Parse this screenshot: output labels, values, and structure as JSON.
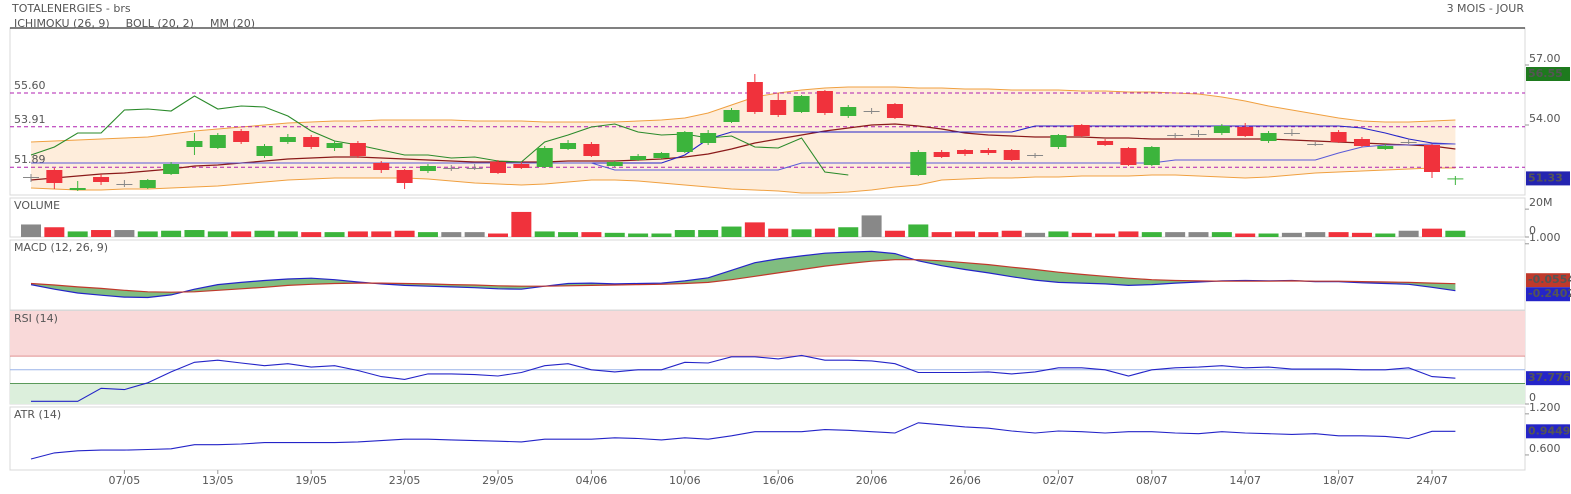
{
  "header": {
    "title": "TOTALENERGIES - brs",
    "period": "3 MOIS - JOUR"
  },
  "chart_data": [
    {
      "type": "candlestick",
      "categories": [
        null,
        null,
        null,
        null,
        "07/05",
        null,
        null,
        null,
        "13/05",
        null,
        null,
        null,
        "19/05",
        null,
        null,
        null,
        "23/05",
        null,
        null,
        null,
        "29/05",
        null,
        null,
        null,
        "04/06",
        null,
        null,
        null,
        "10/06",
        null,
        null,
        null,
        "16/06",
        null,
        null,
        null,
        "20/06",
        null,
        null,
        null,
        "26/06",
        null,
        null,
        null,
        "02/07",
        null,
        null,
        null,
        "08/07",
        null,
        null,
        null,
        "14/07",
        null,
        null,
        null,
        "18/07",
        null,
        null,
        null,
        "24/07",
        null
      ],
      "open": [
        51.4,
        51.75,
        50.75,
        51.4,
        51.05,
        50.85,
        51.55,
        52.9,
        52.85,
        53.7,
        52.45,
        53.15,
        53.4,
        52.85,
        53.1,
        52.1,
        51.75,
        51.7,
        51.85,
        51.85,
        52.15,
        52.05,
        51.9,
        52.8,
        53.05,
        51.95,
        52.25,
        52.35,
        52.65,
        53.1,
        54.15,
        56.15,
        55.25,
        54.65,
        55.7,
        54.45,
        54.7,
        55.05,
        51.5,
        52.65,
        52.75,
        52.75,
        52.75,
        52.5,
        52.9,
        54.0,
        53.2,
        52.85,
        52.0,
        53.5,
        53.55,
        53.6,
        53.9,
        53.2,
        53.6,
        53.05,
        53.65,
        53.3,
        52.8,
        53.15,
        53.0,
        51.3
      ],
      "close": [
        51.4,
        51.1,
        50.85,
        51.15,
        51.05,
        51.25,
        52.05,
        53.2,
        53.5,
        53.15,
        52.95,
        53.4,
        52.9,
        53.1,
        52.45,
        51.75,
        51.1,
        51.95,
        51.85,
        51.85,
        51.6,
        51.85,
        52.85,
        53.1,
        52.45,
        52.15,
        52.45,
        52.6,
        53.65,
        53.6,
        54.75,
        54.65,
        54.5,
        55.45,
        54.6,
        54.9,
        54.7,
        54.35,
        52.65,
        52.4,
        52.55,
        52.6,
        52.25,
        52.5,
        53.5,
        53.45,
        53.0,
        52.0,
        52.9,
        53.5,
        53.55,
        53.95,
        53.45,
        53.6,
        53.6,
        53.05,
        53.15,
        52.95,
        52.95,
        53.15,
        51.65,
        51.33
      ],
      "high": [
        51.55,
        51.85,
        51.2,
        51.55,
        51.25,
        51.3,
        52.15,
        53.6,
        53.6,
        53.8,
        53.05,
        53.55,
        53.5,
        53.2,
        53.2,
        52.2,
        51.8,
        52.05,
        52.0,
        52.05,
        52.25,
        52.15,
        52.95,
        53.25,
        53.15,
        52.2,
        52.55,
        52.65,
        53.7,
        53.75,
        54.85,
        56.55,
        55.6,
        55.5,
        55.75,
        55.0,
        54.85,
        55.1,
        52.75,
        52.75,
        52.8,
        52.85,
        52.8,
        52.6,
        53.55,
        54.05,
        53.3,
        52.9,
        52.95,
        53.6,
        53.75,
        54.05,
        54.1,
        53.7,
        53.8,
        53.15,
        53.75,
        53.4,
        53.05,
        53.3,
        53.05,
        51.45
      ],
      "low": [
        51.15,
        50.8,
        50.7,
        51.0,
        50.9,
        50.8,
        51.5,
        52.5,
        52.8,
        53.05,
        52.35,
        53.05,
        52.8,
        52.7,
        52.35,
        51.6,
        50.8,
        51.6,
        51.7,
        51.75,
        51.55,
        51.8,
        51.85,
        52.75,
        52.4,
        51.9,
        52.2,
        52.3,
        52.6,
        53.0,
        54.1,
        54.55,
        54.4,
        54.6,
        54.5,
        54.35,
        54.55,
        54.3,
        51.45,
        52.35,
        52.45,
        52.5,
        52.2,
        52.35,
        52.8,
        53.4,
        52.95,
        51.95,
        51.95,
        53.35,
        53.4,
        53.5,
        53.4,
        53.1,
        53.45,
        52.95,
        53.1,
        52.9,
        52.75,
        53.05,
        51.35,
        51.0
      ],
      "up_color": "#3cb43c",
      "down_color": "#f0323c",
      "flat_color": "#888888",
      "ylim": [
        50.5,
        58.85
      ],
      "yticks": [
        {
          "value": 57,
          "label": "57.00"
        },
        {
          "value": 54,
          "label": "54.00"
        }
      ],
      "levels": [
        {
          "value": 55.6,
          "label": "55.60"
        },
        {
          "value": 53.91,
          "label": "53.91"
        },
        {
          "value": 51.89,
          "label": "51.89"
        }
      ],
      "level_color": "#b020b0",
      "high_box_color": "#1e7a1e",
      "last_box_color": "#2424b0",
      "indicators": [
        {
          "name": "ICHIMOKU (26, 9)",
          "color": "#2a2aaa",
          "lines": [
            {
              "color": "#2424c8",
              "values": [
                52.1,
                52.1,
                52.1,
                52.1,
                52.1,
                52.1,
                52.1,
                52.1,
                52.1,
                52.1,
                52.1,
                52.1,
                52.1,
                52.1,
                52.1,
                52.1,
                52.1,
                52.1,
                52.1,
                52.1,
                52.1,
                52.1,
                52.1,
                52.1,
                52.1,
                52.1,
                52.1,
                52.1,
                52.5,
                53.3,
                53.65,
                53.65,
                53.65,
                53.65,
                53.65,
                53.65,
                53.65,
                53.65,
                53.65,
                53.65,
                53.65,
                53.65,
                53.65,
                53.95,
                53.95,
                53.95,
                53.95,
                53.95,
                53.95,
                53.95,
                53.95,
                53.95,
                53.95,
                53.95,
                53.95,
                53.95,
                53.95,
                53.85,
                53.6,
                53.3,
                53.1,
                53.05
              ]
            },
            {
              "color": "#5a5ad8",
              "values": [
                52.1,
                52.1,
                52.1,
                52.1,
                52.1,
                52.1,
                52.1,
                52.1,
                52.1,
                52.1,
                52.1,
                52.1,
                52.1,
                52.1,
                52.1,
                52.1,
                52.1,
                52.1,
                52.1,
                52.1,
                52.1,
                52.1,
                52.1,
                52.1,
                52.1,
                51.75,
                51.75,
                51.75,
                51.75,
                51.75,
                51.75,
                51.75,
                51.75,
                52.1,
                52.1,
                52.1,
                52.1,
                52.1,
                52.1,
                52.1,
                52.1,
                52.1,
                52.1,
                52.1,
                52.1,
                52.1,
                52.1,
                52.1,
                52.1,
                52.25,
                52.25,
                52.25,
                52.25,
                52.25,
                52.25,
                52.25,
                52.6,
                52.9,
                53.0,
                53.0,
                53.05,
                53.05
              ]
            },
            {
              "color": "#2a8a2a",
              "values": [
                52.5,
                52.9,
                53.6,
                53.6,
                54.75,
                54.8,
                54.7,
                55.45,
                54.8,
                54.95,
                54.9,
                54.45,
                53.7,
                53.2,
                53.0,
                52.75,
                52.5,
                52.5,
                52.35,
                52.4,
                52.2,
                52.15,
                53.15,
                53.5,
                53.9,
                54.05,
                53.65,
                53.5,
                53.55,
                53.35,
                53.45,
                52.9,
                52.85,
                53.35,
                51.65,
                51.5,
                null,
                null,
                null,
                null,
                null,
                null,
                null,
                null,
                null,
                null,
                null,
                null,
                null,
                null,
                null,
                null,
                null,
                null,
                null,
                null,
                null,
                null,
                null,
                null,
                null,
                null
              ]
            }
          ]
        },
        {
          "name": "BOLL (20, 2)",
          "color": "#f0a040",
          "fill": "#fde6cc",
          "upper": [
            53.15,
            53.2,
            53.25,
            53.3,
            53.35,
            53.4,
            53.55,
            53.7,
            53.8,
            53.9,
            54.0,
            54.1,
            54.15,
            54.2,
            54.2,
            54.25,
            54.25,
            54.25,
            54.25,
            54.2,
            54.2,
            54.2,
            54.15,
            54.15,
            54.15,
            54.15,
            54.2,
            54.25,
            54.35,
            54.6,
            55.0,
            55.4,
            55.6,
            55.75,
            55.85,
            55.9,
            55.9,
            55.9,
            55.85,
            55.85,
            55.8,
            55.8,
            55.75,
            55.75,
            55.75,
            55.7,
            55.7,
            55.65,
            55.65,
            55.6,
            55.55,
            55.4,
            55.2,
            54.95,
            54.75,
            54.55,
            54.35,
            54.2,
            54.15,
            54.15,
            54.2,
            54.25
          ],
          "lower": [
            50.85,
            50.8,
            50.75,
            50.75,
            50.8,
            50.8,
            50.85,
            50.9,
            50.95,
            51.05,
            51.15,
            51.25,
            51.3,
            51.35,
            51.35,
            51.35,
            51.35,
            51.3,
            51.2,
            51.1,
            51.05,
            51.0,
            51.05,
            51.15,
            51.25,
            51.25,
            51.2,
            51.1,
            51.0,
            50.9,
            50.8,
            50.75,
            50.7,
            50.6,
            50.6,
            50.65,
            50.75,
            50.9,
            51.0,
            51.25,
            51.3,
            51.35,
            51.35,
            51.4,
            51.4,
            51.45,
            51.45,
            51.45,
            51.5,
            51.5,
            51.45,
            51.4,
            51.35,
            51.4,
            51.5,
            51.6,
            51.65,
            51.7,
            51.75,
            51.8,
            51.85,
            51.85
          ]
        },
        {
          "name": "MM (20)",
          "color": "#8b1a1a",
          "values": [
            51.25,
            51.35,
            51.45,
            51.55,
            51.6,
            51.7,
            51.8,
            51.95,
            52.0,
            52.1,
            52.2,
            52.3,
            52.35,
            52.4,
            52.4,
            52.35,
            52.3,
            52.25,
            52.2,
            52.15,
            52.15,
            52.15,
            52.15,
            52.2,
            52.2,
            52.2,
            52.25,
            52.3,
            52.4,
            52.55,
            52.8,
            53.1,
            53.3,
            53.5,
            53.7,
            53.85,
            54.0,
            54.05,
            53.95,
            53.8,
            53.6,
            53.5,
            53.45,
            53.4,
            53.4,
            53.4,
            53.35,
            53.35,
            53.3,
            53.3,
            53.3,
            53.3,
            53.3,
            53.3,
            53.25,
            53.2,
            53.15,
            53.1,
            53.05,
            53.0,
            52.95,
            52.8
          ]
        }
      ]
    },
    {
      "type": "bar",
      "title": "VOLUME",
      "values": [
        9,
        7,
        4,
        5,
        5,
        4,
        4.5,
        5,
        4,
        4,
        4.5,
        4,
        3.5,
        3.5,
        4,
        4,
        4.5,
        3.5,
        3.5,
        3.5,
        2.5,
        18,
        4,
        3.5,
        3.5,
        3,
        2.5,
        2.5,
        5,
        5,
        7.5,
        10.5,
        6,
        5.5,
        6,
        7,
        15.5,
        4.5,
        9,
        3.5,
        4,
        3.5,
        4.5,
        3,
        4,
        3,
        2.5,
        4,
        3.5,
        3.5,
        3.5,
        3.5,
        2.5,
        2.5,
        3,
        3.5,
        3.5,
        3,
        2.5,
        4.5,
        6,
        4.5
      ],
      "ylim": [
        0,
        28
      ],
      "yticks": [
        {
          "value": 20,
          "label": "20M"
        },
        0
      ]
    },
    {
      "type": "line",
      "title": "MACD (12, 26, 9)",
      "series": [
        {
          "color": "#2424c8",
          "values": [
            -0.08,
            -0.2,
            -0.3,
            -0.36,
            -0.41,
            -0.42,
            -0.35,
            -0.2,
            -0.08,
            -0.02,
            0.03,
            0.07,
            0.09,
            0.05,
            -0.01,
            -0.06,
            -0.1,
            -0.12,
            -0.14,
            -0.16,
            -0.19,
            -0.2,
            -0.12,
            -0.05,
            -0.04,
            -0.06,
            -0.05,
            -0.04,
            0.02,
            0.1,
            0.3,
            0.5,
            0.6,
            0.68,
            0.75,
            0.78,
            0.8,
            0.74,
            0.55,
            0.42,
            0.32,
            0.23,
            0.13,
            0.04,
            -0.02,
            -0.04,
            -0.06,
            -0.1,
            -0.08,
            -0.04,
            -0.01,
            0.02,
            0.03,
            0.02,
            0.03,
            0.0,
            0.0,
            -0.03,
            -0.05,
            -0.07,
            -0.15,
            -0.2402
          ]
        },
        {
          "color": "#c0392b",
          "values": [
            -0.05,
            -0.09,
            -0.14,
            -0.18,
            -0.23,
            -0.27,
            -0.28,
            -0.27,
            -0.23,
            -0.19,
            -0.15,
            -0.1,
            -0.07,
            -0.05,
            -0.04,
            -0.04,
            -0.05,
            -0.06,
            -0.08,
            -0.09,
            -0.11,
            -0.12,
            -0.12,
            -0.11,
            -0.1,
            -0.09,
            -0.08,
            -0.07,
            -0.05,
            -0.02,
            0.05,
            0.14,
            0.23,
            0.32,
            0.41,
            0.48,
            0.54,
            0.58,
            0.58,
            0.55,
            0.5,
            0.45,
            0.38,
            0.32,
            0.25,
            0.19,
            0.14,
            0.09,
            0.05,
            0.03,
            0.02,
            0.01,
            0.01,
            0.01,
            0.02,
            0.01,
            0.01,
            0.0,
            -0.01,
            -0.02,
            -0.04,
            -0.0554
          ]
        }
      ],
      "fill_color": "#3c9a3c",
      "ylim": [
        -0.75,
        1.1
      ],
      "yticks": [
        {
          "value": 1,
          "label": "1.000"
        }
      ]
    },
    {
      "type": "line",
      "title": "RSI (14)",
      "color": "#2424c8",
      "values": [
        4,
        4,
        4,
        23,
        21,
        31,
        47,
        61,
        64,
        60,
        56,
        59,
        54,
        56,
        49,
        40,
        36,
        44,
        44,
        43,
        41,
        46,
        56,
        59,
        50,
        47,
        50,
        50,
        61,
        60,
        69,
        69,
        66,
        71,
        64,
        64,
        63,
        59,
        46,
        46,
        46,
        47,
        44,
        47,
        53,
        53,
        50,
        41,
        50,
        53,
        54,
        56,
        53,
        54,
        51,
        51,
        51,
        50,
        50,
        53,
        40,
        37.776
      ],
      "overbought": 70,
      "oversold": 30,
      "midline": 50,
      "ylim": [
        0,
        136
      ],
      "yticks": [
        0
      ]
    },
    {
      "type": "line",
      "title": "ATR (14)",
      "color": "#2424c8",
      "values": [
        0.54,
        0.63,
        0.66,
        0.67,
        0.67,
        0.68,
        0.69,
        0.75,
        0.75,
        0.76,
        0.78,
        0.78,
        0.78,
        0.78,
        0.79,
        0.81,
        0.83,
        0.83,
        0.82,
        0.81,
        0.8,
        0.79,
        0.83,
        0.83,
        0.83,
        0.85,
        0.84,
        0.82,
        0.85,
        0.83,
        0.88,
        0.94,
        0.94,
        0.94,
        0.97,
        0.96,
        0.94,
        0.92,
        1.07,
        1.04,
        1.01,
        0.99,
        0.95,
        0.92,
        0.95,
        0.94,
        0.92,
        0.94,
        0.94,
        0.92,
        0.91,
        0.94,
        0.92,
        0.91,
        0.9,
        0.91,
        0.88,
        0.88,
        0.87,
        0.84,
        0.9449,
        0.9449
      ],
      "ylim": [
        0.38,
        1.3
      ],
      "yticks": [
        {
          "value": 1.2,
          "label": "1.200"
        },
        {
          "value": 0.6,
          "label": "0.600"
        }
      ]
    }
  ]
}
